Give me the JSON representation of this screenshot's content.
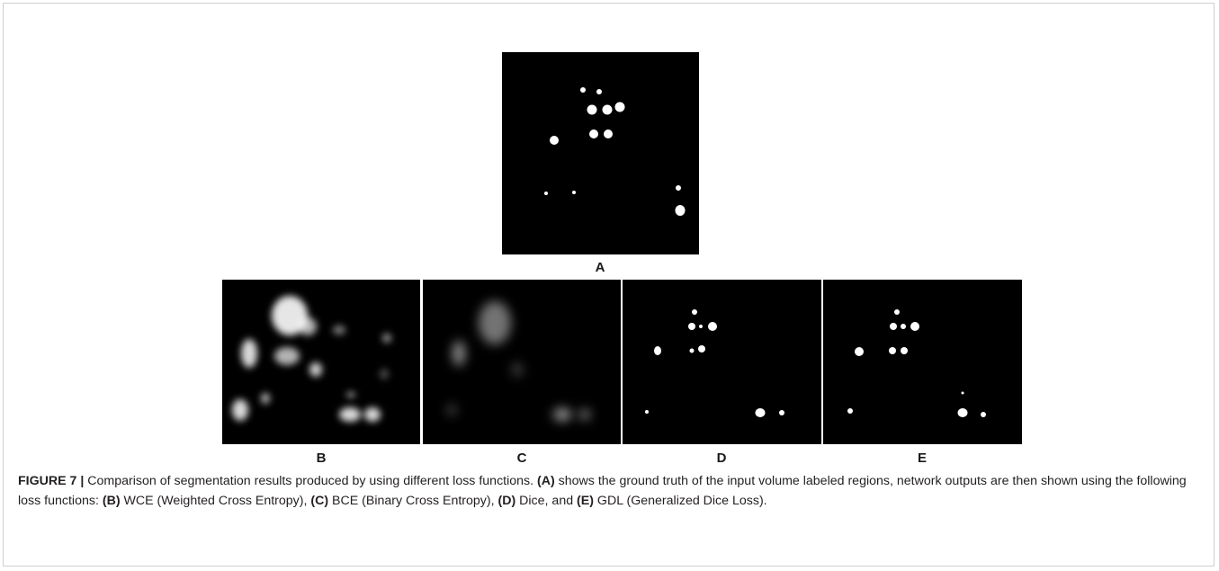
{
  "figure": {
    "panels": [
      {
        "label": "A"
      },
      {
        "label": "B"
      },
      {
        "label": "C"
      },
      {
        "label": "D"
      },
      {
        "label": "E"
      }
    ]
  },
  "caption": {
    "segments": [
      {
        "text": "FIGURE 7 |",
        "bold": true
      },
      {
        "text": " Comparison of segmentation results produced by using different loss functions. ",
        "bold": false
      },
      {
        "text": "(A)",
        "bold": true
      },
      {
        "text": " shows the ground truth of the input volume labeled regions, network outputs are then shown using the following loss functions: ",
        "bold": false
      },
      {
        "text": "(B)",
        "bold": true
      },
      {
        "text": " WCE (Weighted Cross Entropy), ",
        "bold": false
      },
      {
        "text": "(C)",
        "bold": true
      },
      {
        "text": " BCE (Binary Cross Entropy), ",
        "bold": false
      },
      {
        "text": "(D)",
        "bold": true
      },
      {
        "text": " Dice, and ",
        "bold": false
      },
      {
        "text": "(E)",
        "bold": true
      },
      {
        "text": " GDL (Generalized Dice Loss).",
        "bold": false
      }
    ]
  }
}
